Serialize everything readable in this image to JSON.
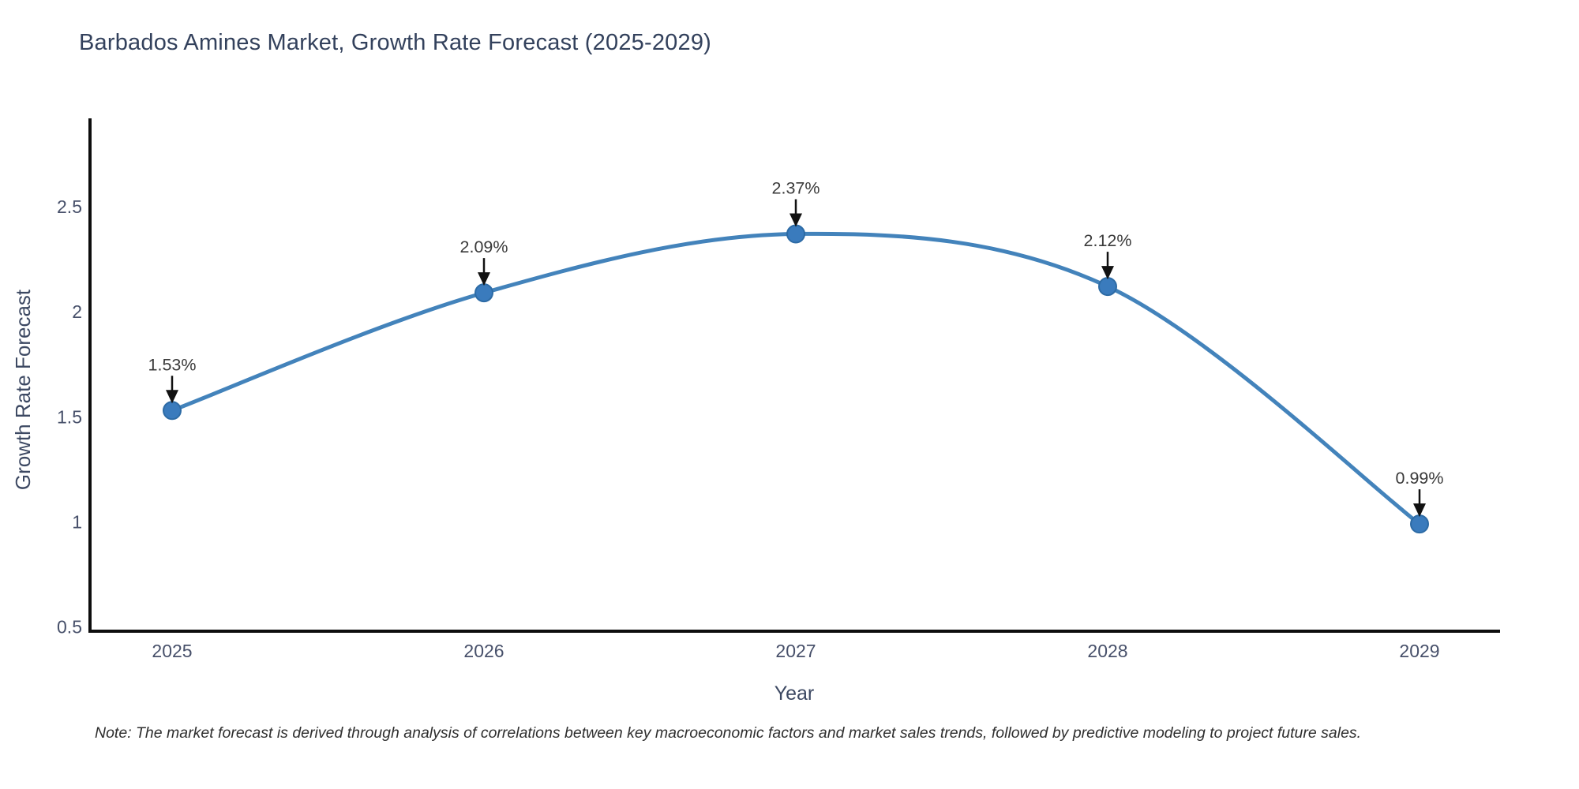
{
  "note": "Note: The market forecast is derived through analysis of correlations between key macroeconomic factors and market sales trends, followed by predictive modeling to project future sales.",
  "chart_data": {
    "type": "line",
    "title": "Barbados Amines Market, Growth Rate Forecast (2025-2029)",
    "xlabel": "Year",
    "ylabel": "Growth Rate Forecast",
    "x": [
      2025,
      2026,
      2027,
      2028,
      2029
    ],
    "values": [
      1.53,
      2.09,
      2.37,
      2.12,
      0.99
    ],
    "point_labels": [
      "1.53%",
      "2.09%",
      "2.37%",
      "2.12%",
      "0.99%"
    ],
    "yticks": [
      0.5,
      1,
      1.5,
      2,
      2.5
    ],
    "ylim": [
      0.48,
      2.92
    ],
    "grid": false,
    "legend": "none",
    "line_color": "#4383bb",
    "marker_color": "#3a7bbd",
    "marker_edge_color": "#2d6ba5",
    "axis_color": "#0d0d0d",
    "tick_label_color": "#47506a",
    "axis_title_color": "#3c4862",
    "annotation_text_color": "#3a3a3a",
    "arrow_color": "#111111",
    "title_color": "#33415c",
    "background_color": "#ffffff"
  }
}
